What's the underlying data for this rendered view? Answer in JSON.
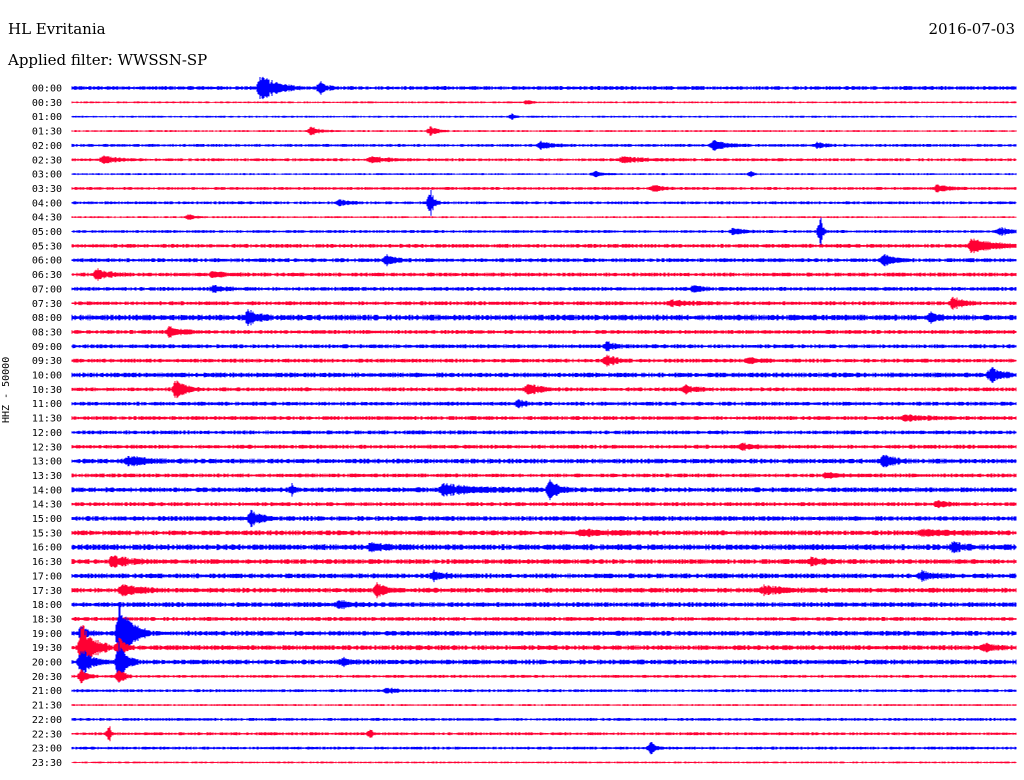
{
  "header": {
    "station": "HL Evritania",
    "date": "2016-07-03",
    "filter": "Applied filter: WWSSN-SP"
  },
  "chart_data": {
    "type": "seismogram",
    "ylabel": "HHZ - 50000",
    "trace_colors": [
      "#0000ff",
      "#ff0033"
    ],
    "minutes_per_line": 30,
    "tick_labels": [
      "00:00",
      "00:30",
      "01:00",
      "01:30",
      "02:00",
      "02:30",
      "03:00",
      "03:30",
      "04:00",
      "04:30",
      "05:00",
      "05:30",
      "06:00",
      "06:30",
      "07:00",
      "07:30",
      "08:00",
      "08:30",
      "09:00",
      "09:30",
      "10:00",
      "10:30",
      "11:00",
      "11:30",
      "12:00",
      "12:30",
      "13:00",
      "13:30",
      "14:00",
      "14:30",
      "15:00",
      "15:30",
      "16:00",
      "16:30",
      "17:00",
      "17:30",
      "18:00",
      "18:30",
      "19:00",
      "19:30",
      "20:00",
      "20:30",
      "21:00",
      "21:30",
      "22:00",
      "22:30",
      "23:00",
      "23:30"
    ],
    "noise_level": [
      2,
      1,
      1,
      1,
      1.5,
      1.5,
      1,
      1.5,
      1.5,
      1,
      1.5,
      2,
      2,
      2,
      2,
      2,
      3,
      2,
      2,
      2,
      2.5,
      2,
      2,
      2,
      2,
      2,
      2.5,
      2,
      2.5,
      2,
      2.5,
      2.5,
      3,
      2.5,
      2.5,
      2.5,
      2.5,
      2,
      2.5,
      2.5,
      2.5,
      1.5,
      1.5,
      1,
      1.5,
      1.5,
      1.5,
      1
    ],
    "events": [
      {
        "line": "00:00",
        "minute": 6.0,
        "amp": 14,
        "dur": 1.3
      },
      {
        "line": "00:00",
        "minute": 7.9,
        "amp": 6,
        "dur": 0.5
      },
      {
        "line": "00:30",
        "minute": 14.5,
        "amp": 3,
        "dur": 0.3
      },
      {
        "line": "01:00",
        "minute": 14.0,
        "amp": 3,
        "dur": 0.2
      },
      {
        "line": "01:30",
        "minute": 7.6,
        "amp": 5,
        "dur": 0.7
      },
      {
        "line": "01:30",
        "minute": 11.4,
        "amp": 5,
        "dur": 0.6
      },
      {
        "line": "02:00",
        "minute": 14.9,
        "amp": 4,
        "dur": 1.0
      },
      {
        "line": "02:00",
        "minute": 20.4,
        "amp": 5,
        "dur": 1.2
      },
      {
        "line": "02:00",
        "minute": 23.7,
        "amp": 3,
        "dur": 0.6
      },
      {
        "line": "02:30",
        "minute": 1.0,
        "amp": 4,
        "dur": 1.2
      },
      {
        "line": "02:30",
        "minute": 9.5,
        "amp": 3,
        "dur": 1.5
      },
      {
        "line": "02:30",
        "minute": 17.5,
        "amp": 3,
        "dur": 2.0
      },
      {
        "line": "03:00",
        "minute": 16.6,
        "amp": 3,
        "dur": 0.8
      },
      {
        "line": "03:00",
        "minute": 21.6,
        "amp": 4,
        "dur": 0.2
      },
      {
        "line": "03:30",
        "minute": 18.5,
        "amp": 3,
        "dur": 0.8
      },
      {
        "line": "03:30",
        "minute": 27.5,
        "amp": 4,
        "dur": 0.9
      },
      {
        "line": "04:00",
        "minute": 11.4,
        "amp": 14,
        "dur": 0.3
      },
      {
        "line": "04:00",
        "minute": 8.5,
        "amp": 3,
        "dur": 0.8
      },
      {
        "line": "04:30",
        "minute": 3.7,
        "amp": 3,
        "dur": 0.6
      },
      {
        "line": "05:00",
        "minute": 23.8,
        "amp": 14,
        "dur": 0.2
      },
      {
        "line": "05:00",
        "minute": 21.0,
        "amp": 3,
        "dur": 1.0
      },
      {
        "line": "05:00",
        "minute": 29.5,
        "amp": 4,
        "dur": 0.8
      },
      {
        "line": "05:30",
        "minute": 28.6,
        "amp": 8,
        "dur": 1.6
      },
      {
        "line": "06:00",
        "minute": 10.0,
        "amp": 5,
        "dur": 0.8
      },
      {
        "line": "06:00",
        "minute": 25.8,
        "amp": 6,
        "dur": 0.8
      },
      {
        "line": "06:30",
        "minute": 0.8,
        "amp": 5,
        "dur": 1.0
      },
      {
        "line": "06:30",
        "minute": 4.5,
        "amp": 3,
        "dur": 1.2
      },
      {
        "line": "07:00",
        "minute": 4.5,
        "amp": 3,
        "dur": 1.0
      },
      {
        "line": "07:00",
        "minute": 19.8,
        "amp": 4,
        "dur": 0.6
      },
      {
        "line": "07:30",
        "minute": 19.0,
        "amp": 3,
        "dur": 1.5
      },
      {
        "line": "07:30",
        "minute": 28.0,
        "amp": 6,
        "dur": 0.9
      },
      {
        "line": "08:00",
        "minute": 5.6,
        "amp": 8,
        "dur": 0.8
      },
      {
        "line": "08:00",
        "minute": 27.3,
        "amp": 4,
        "dur": 0.8
      },
      {
        "line": "08:30",
        "minute": 3.1,
        "amp": 5,
        "dur": 1.2
      },
      {
        "line": "09:00",
        "minute": 17.0,
        "amp": 4,
        "dur": 0.8
      },
      {
        "line": "09:30",
        "minute": 17.0,
        "amp": 6,
        "dur": 0.8
      },
      {
        "line": "09:30",
        "minute": 21.5,
        "amp": 3,
        "dur": 0.8
      },
      {
        "line": "10:00",
        "minute": 29.2,
        "amp": 7,
        "dur": 0.9
      },
      {
        "line": "10:30",
        "minute": 3.3,
        "amp": 10,
        "dur": 0.8
      },
      {
        "line": "10:30",
        "minute": 14.5,
        "amp": 6,
        "dur": 1.0
      },
      {
        "line": "10:30",
        "minute": 19.5,
        "amp": 4,
        "dur": 0.9
      },
      {
        "line": "11:00",
        "minute": 14.2,
        "amp": 4,
        "dur": 0.6
      },
      {
        "line": "11:30",
        "minute": 26.5,
        "amp": 3,
        "dur": 1.8
      },
      {
        "line": "12:30",
        "minute": 21.3,
        "amp": 3,
        "dur": 1.0
      },
      {
        "line": "13:00",
        "minute": 1.8,
        "amp": 4,
        "dur": 1.8
      },
      {
        "line": "13:00",
        "minute": 25.8,
        "amp": 6,
        "dur": 1.0
      },
      {
        "line": "13:30",
        "minute": 24.0,
        "amp": 3,
        "dur": 0.9
      },
      {
        "line": "14:00",
        "minute": 15.2,
        "amp": 12,
        "dur": 0.6
      },
      {
        "line": "14:00",
        "minute": 11.8,
        "amp": 5,
        "dur": 3.0
      },
      {
        "line": "14:00",
        "minute": 7.0,
        "amp": 5,
        "dur": 0.2
      },
      {
        "line": "14:30",
        "minute": 27.5,
        "amp": 3,
        "dur": 0.9
      },
      {
        "line": "15:00",
        "minute": 5.7,
        "amp": 8,
        "dur": 0.8
      },
      {
        "line": "15:30",
        "minute": 16.2,
        "amp": 3,
        "dur": 2.5
      },
      {
        "line": "15:30",
        "minute": 27.0,
        "amp": 3,
        "dur": 2.5
      },
      {
        "line": "16:00",
        "minute": 9.5,
        "amp": 4,
        "dur": 1.0
      },
      {
        "line": "16:00",
        "minute": 28.0,
        "amp": 5,
        "dur": 0.8
      },
      {
        "line": "16:30",
        "minute": 1.3,
        "amp": 6,
        "dur": 1.3
      },
      {
        "line": "16:30",
        "minute": 23.5,
        "amp": 4,
        "dur": 1.0
      },
      {
        "line": "17:00",
        "minute": 11.5,
        "amp": 4,
        "dur": 1.0
      },
      {
        "line": "17:00",
        "minute": 27.0,
        "amp": 4,
        "dur": 1.0
      },
      {
        "line": "17:30",
        "minute": 1.6,
        "amp": 6,
        "dur": 1.3
      },
      {
        "line": "17:30",
        "minute": 9.7,
        "amp": 7,
        "dur": 0.9
      },
      {
        "line": "17:30",
        "minute": 22.0,
        "amp": 4,
        "dur": 2.0
      },
      {
        "line": "18:00",
        "minute": 8.5,
        "amp": 4,
        "dur": 1.0
      },
      {
        "line": "19:00",
        "minute": 1.5,
        "amp": 32,
        "dur": 1.0
      },
      {
        "line": "19:00",
        "minute": 0.3,
        "amp": 6,
        "dur": 0.6
      },
      {
        "line": "19:30",
        "minute": 0.3,
        "amp": 26,
        "dur": 1.0
      },
      {
        "line": "19:30",
        "minute": 1.5,
        "amp": 10,
        "dur": 0.5
      },
      {
        "line": "19:30",
        "minute": 29.0,
        "amp": 4,
        "dur": 0.8
      },
      {
        "line": "20:00",
        "minute": 0.3,
        "amp": 14,
        "dur": 0.8
      },
      {
        "line": "20:00",
        "minute": 1.5,
        "amp": 22,
        "dur": 0.6
      },
      {
        "line": "20:00",
        "minute": 8.6,
        "amp": 4,
        "dur": 0.6
      },
      {
        "line": "20:30",
        "minute": 0.3,
        "amp": 8,
        "dur": 0.5
      },
      {
        "line": "20:30",
        "minute": 1.5,
        "amp": 10,
        "dur": 0.4
      },
      {
        "line": "21:00",
        "minute": 10.0,
        "amp": 3,
        "dur": 0.8
      },
      {
        "line": "22:30",
        "minute": 1.2,
        "amp": 8,
        "dur": 0.15
      },
      {
        "line": "22:30",
        "minute": 9.5,
        "amp": 5,
        "dur": 0.15
      },
      {
        "line": "23:00",
        "minute": 18.4,
        "amp": 6,
        "dur": 0.4
      }
    ]
  }
}
